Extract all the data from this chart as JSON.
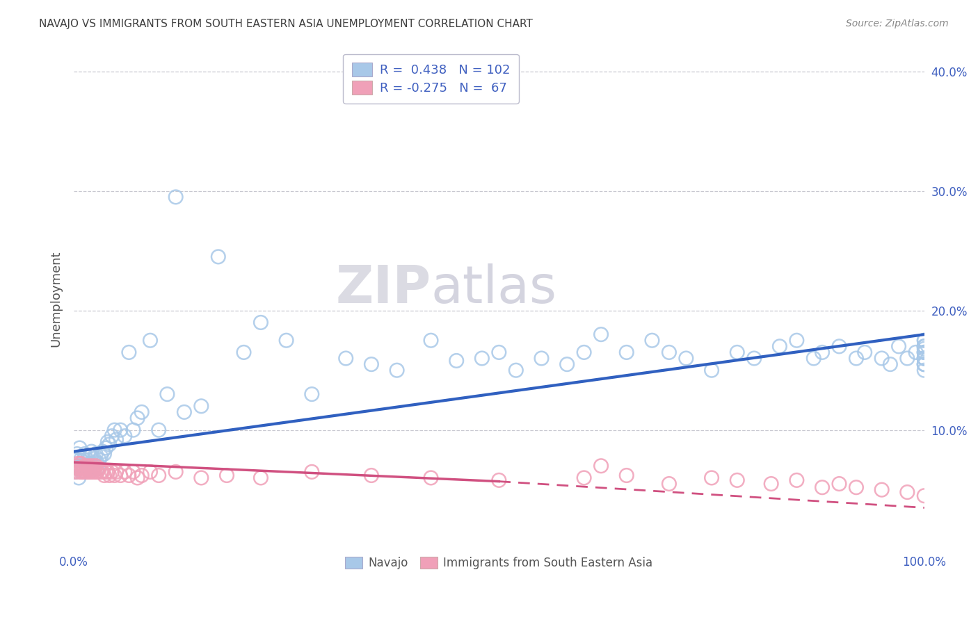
{
  "title": "NAVAJO VS IMMIGRANTS FROM SOUTH EASTERN ASIA UNEMPLOYMENT CORRELATION CHART",
  "source": "Source: ZipAtlas.com",
  "ylabel": "Unemployment",
  "watermark_zip": "ZIP",
  "watermark_atlas": "atlas",
  "legend_label1": "Navajo",
  "legend_label2": "Immigrants from South Eastern Asia",
  "R1": 0.438,
  "N1": 102,
  "R2": -0.275,
  "N2": 67,
  "xlim": [
    0.0,
    1.0
  ],
  "ylim": [
    0.0,
    0.42
  ],
  "color_navajo": "#A8C8E8",
  "color_immigrant": "#F0A0B8",
  "line_color_navajo": "#3060C0",
  "line_color_immigrant": "#D05080",
  "background_color": "#FFFFFF",
  "grid_color": "#C8C8D0",
  "title_color": "#404040",
  "axis_label_color": "#4060C0",
  "navajo_x": [
    0.002,
    0.003,
    0.004,
    0.005,
    0.006,
    0.007,
    0.008,
    0.009,
    0.01,
    0.011,
    0.012,
    0.013,
    0.014,
    0.015,
    0.016,
    0.017,
    0.018,
    0.019,
    0.02,
    0.021,
    0.022,
    0.023,
    0.024,
    0.025,
    0.026,
    0.027,
    0.028,
    0.03,
    0.032,
    0.034,
    0.036,
    0.038,
    0.04,
    0.042,
    0.045,
    0.048,
    0.05,
    0.055,
    0.06,
    0.065,
    0.07,
    0.075,
    0.08,
    0.09,
    0.1,
    0.11,
    0.12,
    0.13,
    0.15,
    0.17,
    0.2,
    0.22,
    0.25,
    0.28,
    0.32,
    0.35,
    0.38,
    0.42,
    0.45,
    0.48,
    0.5,
    0.52,
    0.55,
    0.58,
    0.6,
    0.62,
    0.65,
    0.68,
    0.7,
    0.72,
    0.75,
    0.78,
    0.8,
    0.83,
    0.85,
    0.87,
    0.88,
    0.9,
    0.92,
    0.93,
    0.95,
    0.96,
    0.97,
    0.98,
    0.99,
    1.0,
    1.0,
    1.0,
    1.0,
    1.0,
    1.0,
    1.0,
    1.0,
    1.0,
    1.0,
    1.0,
    1.0,
    1.0,
    1.0,
    1.0,
    1.0,
    1.0
  ],
  "navajo_y": [
    0.065,
    0.075,
    0.08,
    0.07,
    0.06,
    0.085,
    0.075,
    0.065,
    0.07,
    0.065,
    0.075,
    0.08,
    0.065,
    0.07,
    0.075,
    0.068,
    0.072,
    0.065,
    0.078,
    0.082,
    0.072,
    0.068,
    0.076,
    0.07,
    0.08,
    0.073,
    0.068,
    0.075,
    0.078,
    0.082,
    0.08,
    0.085,
    0.09,
    0.088,
    0.095,
    0.1,
    0.092,
    0.1,
    0.095,
    0.165,
    0.1,
    0.11,
    0.115,
    0.175,
    0.1,
    0.13,
    0.295,
    0.115,
    0.12,
    0.245,
    0.165,
    0.19,
    0.175,
    0.13,
    0.16,
    0.155,
    0.15,
    0.175,
    0.158,
    0.16,
    0.165,
    0.15,
    0.16,
    0.155,
    0.165,
    0.18,
    0.165,
    0.175,
    0.165,
    0.16,
    0.15,
    0.165,
    0.16,
    0.17,
    0.175,
    0.16,
    0.165,
    0.17,
    0.16,
    0.165,
    0.16,
    0.155,
    0.17,
    0.16,
    0.165,
    0.175,
    0.168,
    0.16,
    0.155,
    0.165,
    0.17,
    0.16,
    0.15,
    0.155,
    0.165,
    0.175,
    0.16,
    0.155,
    0.17,
    0.16,
    0.165,
    0.17
  ],
  "immigrant_x": [
    0.002,
    0.003,
    0.004,
    0.005,
    0.006,
    0.007,
    0.008,
    0.009,
    0.01,
    0.011,
    0.012,
    0.013,
    0.014,
    0.015,
    0.016,
    0.017,
    0.018,
    0.019,
    0.02,
    0.021,
    0.022,
    0.023,
    0.024,
    0.025,
    0.026,
    0.027,
    0.028,
    0.03,
    0.032,
    0.034,
    0.036,
    0.038,
    0.04,
    0.042,
    0.045,
    0.048,
    0.05,
    0.055,
    0.06,
    0.065,
    0.07,
    0.075,
    0.08,
    0.09,
    0.1,
    0.12,
    0.15,
    0.18,
    0.22,
    0.28,
    0.35,
    0.42,
    0.5,
    0.6,
    0.62,
    0.65,
    0.7,
    0.75,
    0.78,
    0.82,
    0.85,
    0.88,
    0.9,
    0.92,
    0.95,
    0.98,
    1.0
  ],
  "immigrant_y": [
    0.065,
    0.068,
    0.07,
    0.072,
    0.065,
    0.068,
    0.072,
    0.065,
    0.068,
    0.065,
    0.068,
    0.065,
    0.07,
    0.065,
    0.068,
    0.065,
    0.07,
    0.065,
    0.068,
    0.065,
    0.07,
    0.065,
    0.068,
    0.065,
    0.07,
    0.065,
    0.065,
    0.068,
    0.065,
    0.065,
    0.062,
    0.065,
    0.065,
    0.062,
    0.065,
    0.062,
    0.065,
    0.062,
    0.065,
    0.062,
    0.065,
    0.06,
    0.062,
    0.065,
    0.062,
    0.065,
    0.06,
    0.062,
    0.06,
    0.065,
    0.062,
    0.06,
    0.058,
    0.06,
    0.07,
    0.062,
    0.055,
    0.06,
    0.058,
    0.055,
    0.058,
    0.052,
    0.055,
    0.052,
    0.05,
    0.048,
    0.045
  ],
  "navajo_line": [
    0.082,
    0.18
  ],
  "immigrant_line_solid": [
    [
      0.0,
      0.5
    ],
    [
      0.073,
      0.057
    ]
  ],
  "immigrant_line_dash": [
    [
      0.5,
      1.0
    ],
    [
      0.057,
      0.035
    ]
  ]
}
